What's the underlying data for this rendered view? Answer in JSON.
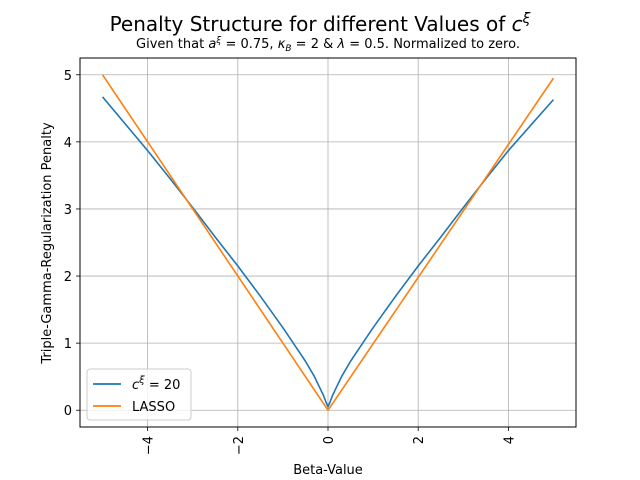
{
  "chart_data": {
    "type": "line",
    "title_main": "Penalty Structure for different Values of ",
    "title_sym": "c",
    "title_sup": "ξ",
    "subtitle": {
      "p1": "Given that ",
      "a": "a",
      "xi": "ξ",
      "p2": " = 0.75, ",
      "kappa": "κ",
      "B": "B",
      "p3": " = 2 & ",
      "lambda": "λ",
      "p4": " = 0.5. Normalized to zero."
    },
    "xlabel": "Beta-Value",
    "ylabel": "Triple-Gamma-Regularization Penalty",
    "xlim": [
      -5.5,
      5.5
    ],
    "ylim": [
      -0.25,
      5.25
    ],
    "xticks": [
      -4,
      -2,
      0,
      2,
      4
    ],
    "xtick_labels": [
      "−4",
      "−2",
      "0",
      "2",
      "4"
    ],
    "yticks": [
      0,
      1,
      2,
      3,
      4,
      5
    ],
    "ytick_labels": [
      "0",
      "1",
      "2",
      "3",
      "4",
      "5"
    ],
    "grid": true,
    "legend_position": "lower left",
    "series": [
      {
        "name_sym": "c",
        "name_sup": "ξ",
        "name_rest": " = 20",
        "color": "#1f77b4",
        "x": [
          -5,
          -4.5,
          -4,
          -3.5,
          -3,
          -2.5,
          -2,
          -1.5,
          -1,
          -0.7,
          -0.5,
          -0.3,
          -0.2,
          -0.1,
          -0.05,
          0,
          0.05,
          0.1,
          0.2,
          0.3,
          0.5,
          0.7,
          1,
          1.5,
          2,
          2.5,
          3,
          3.5,
          4,
          4.5,
          5
        ],
        "y": [
          4.67,
          4.27,
          3.87,
          3.45,
          3.02,
          2.58,
          2.15,
          1.7,
          1.23,
          0.93,
          0.73,
          0.5,
          0.36,
          0.22,
          0.13,
          0.05,
          0.13,
          0.22,
          0.36,
          0.5,
          0.73,
          0.93,
          1.23,
          1.7,
          2.15,
          2.58,
          3.02,
          3.45,
          3.87,
          4.25,
          4.63
        ]
      },
      {
        "name": "LASSO",
        "color": "#ff7f0e",
        "x": [
          -5,
          0,
          5
        ],
        "y": [
          5.0,
          0.0,
          4.95
        ]
      }
    ]
  }
}
